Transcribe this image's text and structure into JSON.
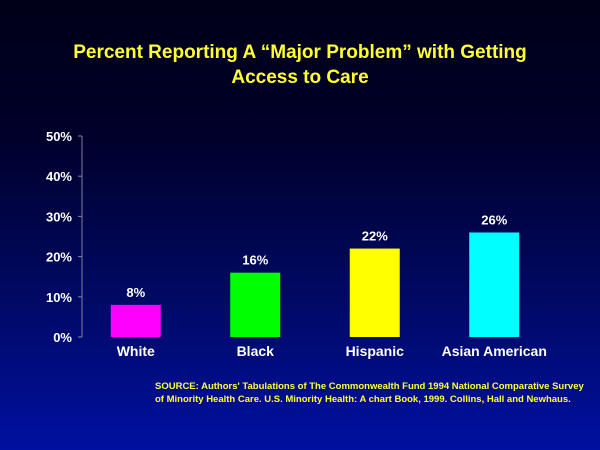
{
  "chart_data": {
    "type": "bar",
    "title_lines": [
      "Percent Reporting A “Major Problem” with Getting",
      "Access to Care"
    ],
    "categories": [
      "White",
      "Black",
      "Hispanic",
      "Asian American"
    ],
    "values": [
      8,
      16,
      22,
      26
    ],
    "data_labels": [
      "8%",
      "16%",
      "22%",
      "26%"
    ],
    "colors": [
      "#ff00ff",
      "#00ff00",
      "#ffff00",
      "#00ffff"
    ],
    "ylim": [
      0,
      50
    ],
    "yticks": [
      0,
      10,
      20,
      30,
      40,
      50
    ],
    "ytick_labels": [
      "0%",
      "10%",
      "20%",
      "30%",
      "40%",
      "50%"
    ],
    "grid": false
  },
  "source_note": "SOURCE: Authors' Tabulations of The Commonwealth Fund 1994 National Comparative Survey of Minority Health Care. U.S. Minority Health: A chart Book, 1999. Collins, Hall and Newhaus."
}
